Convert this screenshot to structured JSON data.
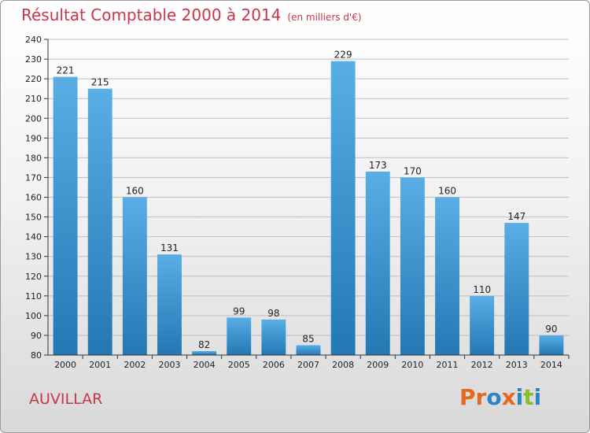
{
  "title": "Résultat Comptable 2000 à 2014",
  "subtitle": "(en milliers d'€)",
  "location": "AUVILLAR",
  "logo": {
    "text": "Proxiti",
    "colors": [
      "#e8671e",
      "#e8671e",
      "#2a84c6",
      "#e8671e",
      "#2a84c6",
      "#8abd2b",
      "#2a84c6"
    ]
  },
  "colors": {
    "title": "#c8364a",
    "bar_light": "#5aaee6",
    "bar_dark": "#2377b3",
    "axis": "#333333",
    "grid": "#bfbfbf"
  },
  "chart_data": {
    "type": "bar",
    "categories": [
      "2000",
      "2001",
      "2002",
      "2003",
      "2004",
      "2005",
      "2006",
      "2007",
      "2008",
      "2009",
      "2010",
      "2011",
      "2012",
      "2013",
      "2014"
    ],
    "values": [
      221,
      215,
      160,
      131,
      82,
      99,
      98,
      85,
      229,
      173,
      170,
      160,
      110,
      147,
      90
    ],
    "ylim": [
      80,
      240
    ],
    "yticks": [
      80,
      90,
      100,
      110,
      120,
      130,
      140,
      150,
      160,
      170,
      180,
      190,
      200,
      210,
      220,
      230,
      240
    ],
    "grid": true,
    "data_labels": true
  }
}
